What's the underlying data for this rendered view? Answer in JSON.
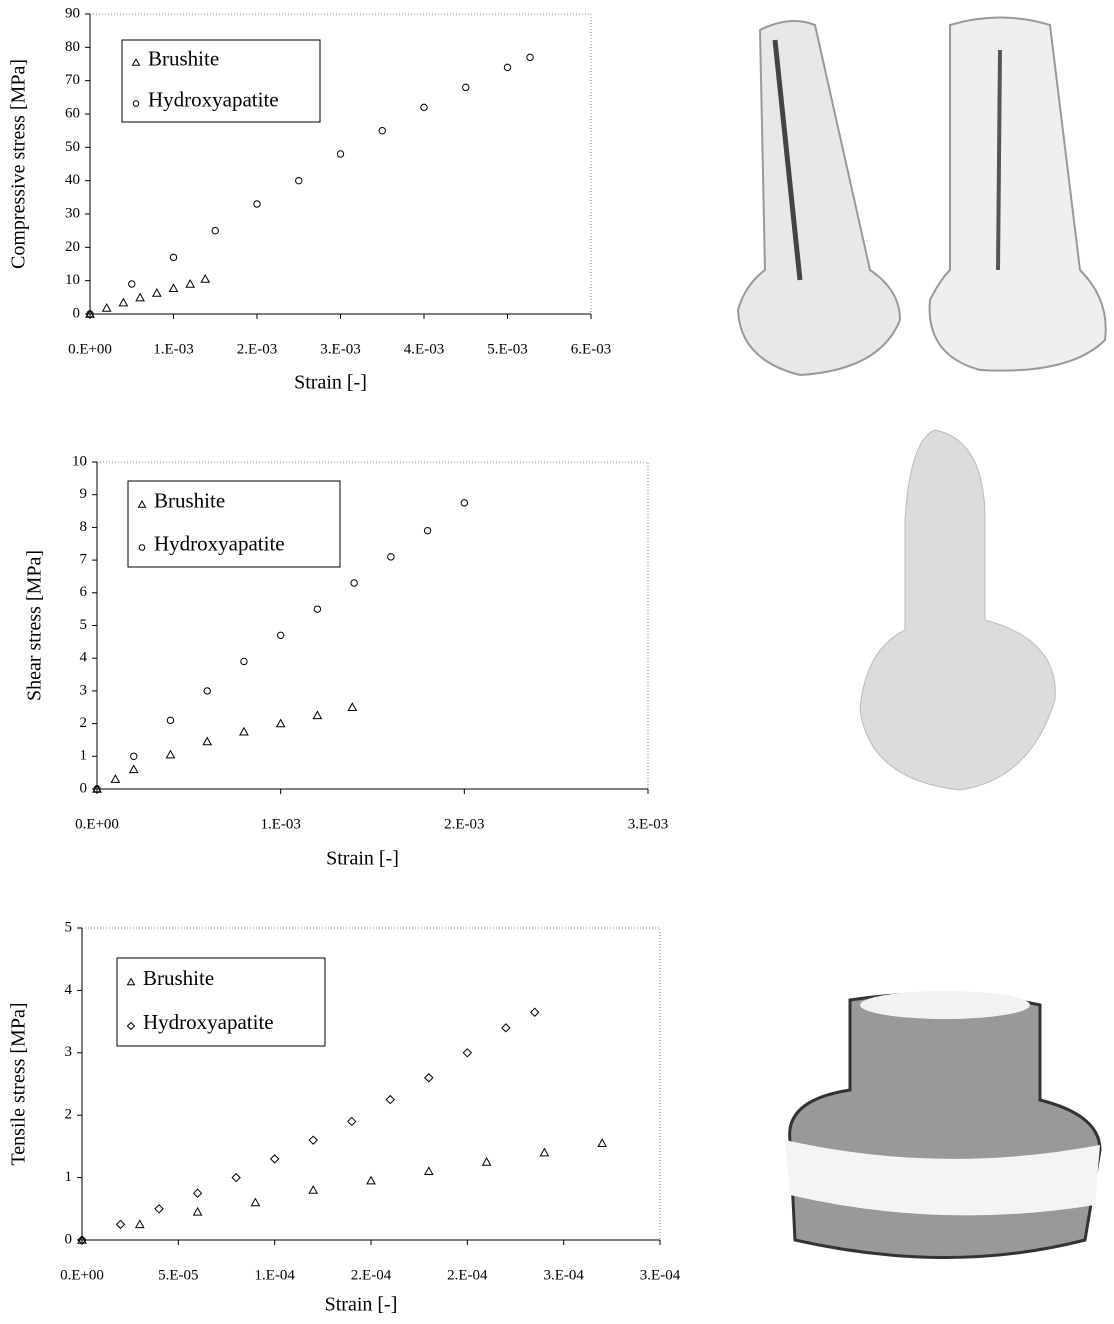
{
  "chart_data": [
    {
      "type": "scatter",
      "y_label": "Compressive stress [MPa]",
      "x_label": "Strain [-]",
      "xlim": [
        0,
        0.006
      ],
      "ylim": [
        0,
        90
      ],
      "xticks": [
        {
          "value": 0,
          "label": "0.E+00"
        },
        {
          "value": 0.001,
          "label": "1.E-03"
        },
        {
          "value": 0.002,
          "label": "2.E-03"
        },
        {
          "value": 0.003,
          "label": "3.E-03"
        },
        {
          "value": 0.004,
          "label": "4.E-03"
        },
        {
          "value": 0.005,
          "label": "5.E-03"
        },
        {
          "value": 0.006,
          "label": "6.E-03"
        }
      ],
      "yticks": [
        0,
        10,
        20,
        30,
        40,
        50,
        60,
        70,
        80,
        90
      ],
      "series": [
        {
          "name": "Brushite",
          "marker": "triangle",
          "color": "#000000",
          "x": [
            0,
            0.0002,
            0.0004,
            0.0006,
            0.0008,
            0.001,
            0.0012,
            0.00138
          ],
          "values": [
            0,
            1.8,
            3.4,
            4.9,
            6.3,
            7.7,
            9,
            10.5
          ]
        },
        {
          "name": "Hydroxyapatite",
          "marker": "circle",
          "color": "#000000",
          "x": [
            0,
            0.0005,
            0.001,
            0.0015,
            0.002,
            0.0025,
            0.003,
            0.0035,
            0.004,
            0.0045,
            0.005,
            0.00527
          ],
          "values": [
            0,
            9,
            17,
            25,
            33,
            40,
            48,
            55,
            62,
            68,
            74,
            77
          ]
        }
      ]
    },
    {
      "type": "scatter",
      "y_label": "Shear stress [MPa]",
      "x_label": "Strain [-]",
      "xlim": [
        0,
        0.003
      ],
      "ylim": [
        0,
        10
      ],
      "xticks": [
        {
          "value": 0,
          "label": "0.E+00"
        },
        {
          "value": 0.001,
          "label": "1.E-03"
        },
        {
          "value": 0.002,
          "label": "2.E-03"
        },
        {
          "value": 0.003,
          "label": "3.E-03"
        }
      ],
      "yticks": [
        0,
        1,
        2,
        3,
        4,
        5,
        6,
        7,
        8,
        9,
        10
      ],
      "series": [
        {
          "name": "Brushite",
          "marker": "triangle",
          "color": "#000000",
          "x": [
            0,
            0.0001,
            0.0002,
            0.0004,
            0.0006,
            0.0008,
            0.001,
            0.0012,
            0.00139
          ],
          "values": [
            0,
            0.3,
            0.6,
            1.05,
            1.45,
            1.75,
            2.0,
            2.25,
            2.5
          ]
        },
        {
          "name": "Hydroxyapatite",
          "marker": "circle",
          "color": "#000000",
          "x": [
            0,
            0.0002,
            0.0004,
            0.0006,
            0.0008,
            0.001,
            0.0012,
            0.0014,
            0.0016,
            0.0018,
            0.002
          ],
          "values": [
            0,
            1.0,
            2.1,
            3.0,
            3.9,
            4.7,
            5.5,
            6.3,
            7.1,
            7.9,
            8.75
          ]
        }
      ]
    },
    {
      "type": "scatter",
      "y_label": "Tensile stress [MPa]",
      "x_label": "Strain [-]",
      "xlim": [
        0,
        0.0003
      ],
      "ylim": [
        0,
        5
      ],
      "xticks": [
        {
          "value": 0,
          "label": "0.E+00"
        },
        {
          "value": 5e-05,
          "label": "5.E-05"
        },
        {
          "value": 0.0001,
          "label": "1.E-04"
        },
        {
          "value": 0.00015,
          "label": "2.E-04"
        },
        {
          "value": 0.0002,
          "label": "2.E-04"
        },
        {
          "value": 0.00025,
          "label": "3.E-04"
        },
        {
          "value": 0.0003,
          "label": "3.E-04"
        }
      ],
      "yticks": [
        0,
        1,
        2,
        3,
        4,
        5
      ],
      "series": [
        {
          "name": "Brushite",
          "marker": "triangle",
          "color": "#000000",
          "x": [
            0,
            3e-05,
            6e-05,
            9e-05,
            0.00012,
            0.00015,
            0.00018,
            0.00021,
            0.00024,
            0.00027
          ],
          "values": [
            0,
            0.25,
            0.45,
            0.6,
            0.8,
            0.95,
            1.1,
            1.25,
            1.4,
            1.55
          ]
        },
        {
          "name": "Hydroxyapatite",
          "marker": "diamond",
          "color": "#000000",
          "x": [
            0,
            2e-05,
            4e-05,
            6e-05,
            8e-05,
            0.0001,
            0.00012,
            0.00014,
            0.00016,
            0.00018,
            0.0002,
            0.00022,
            0.000235
          ],
          "values": [
            0,
            0.25,
            0.5,
            0.75,
            1.0,
            1.3,
            1.6,
            1.9,
            2.25,
            2.6,
            3.0,
            3.4,
            3.65
          ]
        }
      ]
    }
  ]
}
